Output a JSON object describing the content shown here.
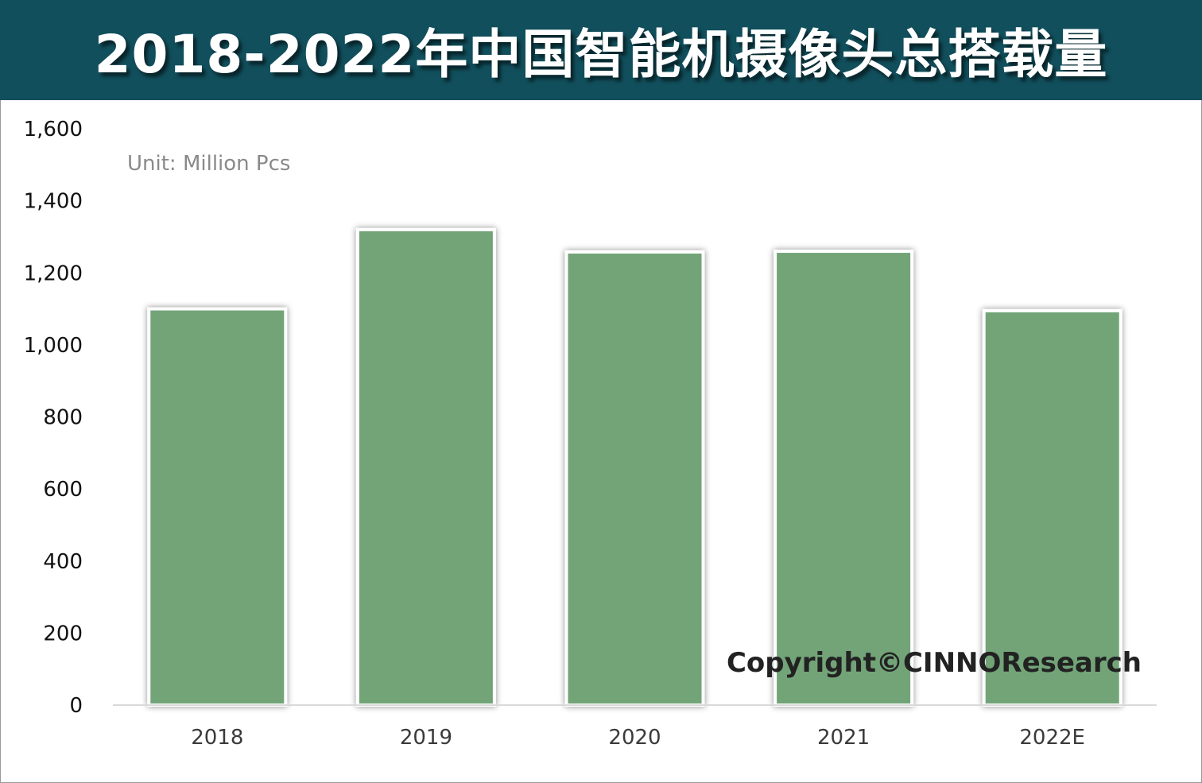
{
  "title": "2018-2022年中国智能机摄像头总搭载量",
  "unit_label": "Unit:  Million Pcs",
  "copyright": "Copyright©CINNOResearch",
  "colors": {
    "title_bg": "#114f5c",
    "bar": "#72a478",
    "bar_outline": "#ffffff"
  },
  "chart_data": {
    "type": "bar",
    "categories": [
      "2018",
      "2019",
      "2020",
      "2021",
      "2022E"
    ],
    "series": [
      {
        "values": [
          1100,
          1320,
          1258,
          1260,
          1095
        ]
      }
    ],
    "ylim": [
      0,
      1600
    ],
    "yticks": [
      "0",
      "200",
      "400",
      "600",
      "800",
      "1,000",
      "1,200",
      "1,400",
      "1,600"
    ],
    "ytick_values": [
      0,
      200,
      400,
      600,
      800,
      1000,
      1200,
      1400,
      1600
    ],
    "xlabel": "",
    "ylabel": "",
    "grid": false,
    "legend": "none"
  }
}
